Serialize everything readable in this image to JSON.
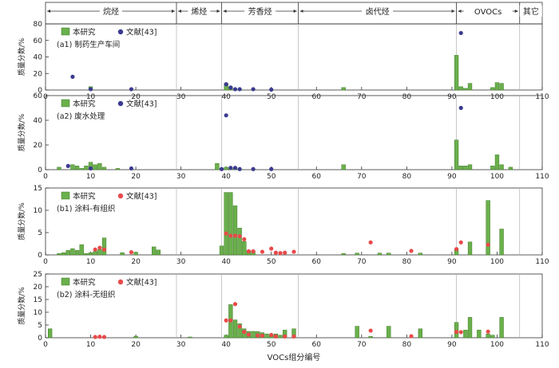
{
  "figure": {
    "xlabel": "VOCs组分编号",
    "groups": [
      "烷烃",
      "烯烃",
      "芳香烃",
      "卤代烃",
      "OVOCs",
      "其它"
    ],
    "group_bounds": [
      1,
      29,
      39,
      56,
      91,
      105,
      110
    ],
    "colors": {
      "bar": "#6ab04c",
      "bar_edge": "#3d7a22",
      "dot_a": "#3b3b8f",
      "dot_b": "#e84a4a"
    }
  },
  "chart_data": [
    {
      "type": "bar",
      "ylabel": "质量分数/%",
      "ylim": [
        0,
        80
      ],
      "yticks": [
        0,
        20,
        40,
        60,
        80
      ],
      "xlim": [
        0,
        110
      ],
      "xticks": [
        0,
        10,
        20,
        30,
        40,
        50,
        60,
        70,
        80,
        90,
        100,
        110
      ],
      "panel_label": "(a1) 制药生产车间",
      "legend": {
        "bar": "本研究",
        "dot": "文献[43]"
      },
      "dot_color": "#3b3b8f",
      "bars": [
        [
          10,
          4
        ],
        [
          40,
          8
        ],
        [
          41,
          4
        ],
        [
          66,
          3
        ],
        [
          91,
          42
        ],
        [
          92,
          4
        ],
        [
          93,
          2
        ],
        [
          94,
          8
        ],
        [
          99,
          3
        ],
        [
          100,
          9
        ],
        [
          101,
          8
        ]
      ],
      "dots": [
        [
          6,
          16
        ],
        [
          10,
          1
        ],
        [
          19,
          1
        ],
        [
          40,
          7
        ],
        [
          41,
          3
        ],
        [
          42,
          1
        ],
        [
          43,
          1
        ],
        [
          46,
          1
        ],
        [
          50,
          0.5
        ],
        [
          92,
          69
        ]
      ]
    },
    {
      "type": "bar",
      "ylabel": "质量分数/%",
      "ylim": [
        0,
        60
      ],
      "yticks": [
        0,
        20,
        40,
        60
      ],
      "xlim": [
        0,
        110
      ],
      "xticks": [
        0,
        10,
        20,
        30,
        40,
        50,
        60,
        70,
        80,
        90,
        100,
        110
      ],
      "panel_label": "(a2) 废水处理",
      "legend": {
        "bar": "本研究",
        "dot": "文献[43]"
      },
      "dot_color": "#3b3b8f",
      "bars": [
        [
          3,
          2
        ],
        [
          6,
          4
        ],
        [
          7,
          3
        ],
        [
          8,
          1
        ],
        [
          9,
          3
        ],
        [
          10,
          6
        ],
        [
          11,
          4
        ],
        [
          12,
          5
        ],
        [
          13,
          2
        ],
        [
          16,
          1
        ],
        [
          38,
          5
        ],
        [
          39,
          1
        ],
        [
          40,
          2
        ],
        [
          41,
          1
        ],
        [
          42,
          1
        ],
        [
          66,
          4
        ],
        [
          91,
          24
        ],
        [
          92,
          3
        ],
        [
          93,
          3
        ],
        [
          94,
          4
        ],
        [
          99,
          3
        ],
        [
          100,
          12
        ],
        [
          101,
          4
        ],
        [
          103,
          2
        ]
      ],
      "dots": [
        [
          5,
          3
        ],
        [
          10,
          1
        ],
        [
          19,
          1
        ],
        [
          39,
          0.5
        ],
        [
          40,
          44
        ],
        [
          41,
          1.5
        ],
        [
          42,
          1.5
        ],
        [
          43,
          0.5
        ],
        [
          46,
          0.5
        ],
        [
          50,
          0.5
        ],
        [
          92,
          50
        ]
      ]
    },
    {
      "type": "bar",
      "ylabel": "质量分数/%",
      "ylim": [
        0,
        15
      ],
      "yticks": [
        0,
        5,
        10,
        15
      ],
      "xlim": [
        0,
        110
      ],
      "xticks": [
        0,
        10,
        20,
        30,
        40,
        50,
        60,
        70,
        80,
        90,
        100,
        110
      ],
      "panel_label": "(b1) 涂料-有组织",
      "legend": {
        "bar": "本研究",
        "dot": "文献[43]"
      },
      "dot_color": "#e84a4a",
      "bars": [
        [
          3,
          0.3
        ],
        [
          4,
          0.5
        ],
        [
          5,
          1
        ],
        [
          6,
          1.4
        ],
        [
          7,
          1
        ],
        [
          8,
          2.3
        ],
        [
          9,
          0.3
        ],
        [
          10,
          0.5
        ],
        [
          11,
          0.8
        ],
        [
          12,
          1.2
        ],
        [
          13,
          3.8
        ],
        [
          17,
          0.5
        ],
        [
          20,
          0.6
        ],
        [
          24,
          1.8
        ],
        [
          25,
          1.1
        ],
        [
          39,
          2
        ],
        [
          40,
          14
        ],
        [
          41,
          14
        ],
        [
          42,
          11
        ],
        [
          43,
          6
        ],
        [
          44,
          3
        ],
        [
          45,
          1
        ],
        [
          46,
          0.8
        ],
        [
          66,
          0.3
        ],
        [
          69,
          0.4
        ],
        [
          74,
          0.4
        ],
        [
          76,
          0.4
        ],
        [
          83,
          0.4
        ],
        [
          91,
          1.2
        ],
        [
          94,
          2.9
        ],
        [
          98,
          12.2
        ],
        [
          101,
          5.8
        ]
      ],
      "dots": [
        [
          11,
          1.2
        ],
        [
          12,
          1.6
        ],
        [
          13,
          1.2
        ],
        [
          19,
          0.6
        ],
        [
          40,
          4.8
        ],
        [
          41,
          4.3
        ],
        [
          42,
          4.3
        ],
        [
          43,
          4.2
        ],
        [
          44,
          3.5
        ],
        [
          45,
          0.8
        ],
        [
          46,
          0.8
        ],
        [
          48,
          0.7
        ],
        [
          50,
          1.4
        ],
        [
          51,
          0.5
        ],
        [
          52,
          0.4
        ],
        [
          53,
          0.5
        ],
        [
          55,
          0.7
        ],
        [
          72,
          2.8
        ],
        [
          81,
          0.9
        ],
        [
          91,
          1.3
        ],
        [
          92,
          2.8
        ],
        [
          98,
          2.3
        ]
      ]
    },
    {
      "type": "bar",
      "ylabel": "质量分数/%",
      "ylim": [
        0,
        25
      ],
      "yticks": [
        0,
        5,
        10,
        15,
        20,
        25
      ],
      "xlim": [
        0,
        110
      ],
      "xticks": [
        0,
        10,
        20,
        30,
        40,
        50,
        60,
        70,
        80,
        90,
        100,
        110
      ],
      "panel_label": "(b2) 涂料-无组织",
      "legend": {
        "bar": "本研究",
        "dot": "文献[43]"
      },
      "dot_color": "#e84a4a",
      "bars": [
        [
          1,
          3.5
        ],
        [
          20,
          0.6
        ],
        [
          32,
          0.3
        ],
        [
          40,
          1
        ],
        [
          41,
          13
        ],
        [
          42,
          7
        ],
        [
          43,
          5.5
        ],
        [
          44,
          3.5
        ],
        [
          45,
          2.5
        ],
        [
          46,
          2.5
        ],
        [
          47,
          2.4
        ],
        [
          48,
          2
        ],
        [
          49,
          1.5
        ],
        [
          50,
          1
        ],
        [
          51,
          1.5
        ],
        [
          52,
          1
        ],
        [
          53,
          3
        ],
        [
          55,
          3.5
        ],
        [
          69,
          4.5
        ],
        [
          72,
          0.5
        ],
        [
          76,
          4.5
        ],
        [
          83,
          3.5
        ],
        [
          91,
          6
        ],
        [
          93,
          3
        ],
        [
          94,
          8
        ],
        [
          96,
          3
        ],
        [
          98,
          1.5
        ],
        [
          99,
          1
        ],
        [
          101,
          8
        ]
      ],
      "dots": [
        [
          11,
          0.3
        ],
        [
          12,
          0.4
        ],
        [
          13,
          0.3
        ],
        [
          40,
          6.8
        ],
        [
          41,
          6.8
        ],
        [
          42,
          13.2
        ],
        [
          43,
          4.4
        ],
        [
          44,
          2.3
        ],
        [
          45,
          1.2
        ],
        [
          47,
          0.9
        ],
        [
          48,
          0.8
        ],
        [
          50,
          1.1
        ],
        [
          51,
          0.5
        ],
        [
          53,
          0.5
        ],
        [
          55,
          0.5
        ],
        [
          72,
          2.8
        ],
        [
          81,
          0.6
        ],
        [
          91,
          2.3
        ],
        [
          92,
          2.2
        ],
        [
          98,
          2.4
        ]
      ]
    }
  ]
}
